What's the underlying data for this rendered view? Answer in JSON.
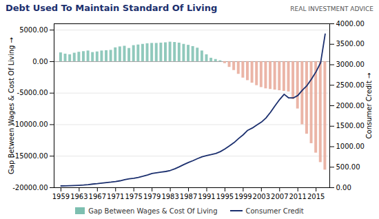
{
  "chart_data": {
    "type": "bar",
    "title": "Debt Used To Maintain Standard Of Living",
    "annotation": "REAL INVESTMENT ADVICE",
    "ylabel": "Gap Between Wages & Cost Of Living",
    "y2label": "Consumer Credit",
    "x": [
      1959,
      1960,
      1961,
      1962,
      1963,
      1964,
      1965,
      1966,
      1967,
      1968,
      1969,
      1970,
      1971,
      1972,
      1973,
      1974,
      1975,
      1976,
      1977,
      1978,
      1979,
      1980,
      1981,
      1982,
      1983,
      1984,
      1985,
      1986,
      1987,
      1988,
      1989,
      1990,
      1991,
      1992,
      1993,
      1994,
      1995,
      1996,
      1997,
      1998,
      1999,
      2000,
      2001,
      2002,
      2003,
      2004,
      2005,
      2006,
      2007,
      2008,
      2009,
      2010,
      2011,
      2012,
      2013,
      2014,
      2015,
      2016,
      2017
    ],
    "series": [
      {
        "name": "Gap Between Wages & Cost Of Living",
        "type": "bar",
        "colors": [
          "#7dbfb0",
          "#7dbfb0",
          "#7dbfb0",
          "#7dbfb0",
          "#7dbfb0",
          "#7dbfb0",
          "#7dbfb0",
          "#7dbfb0",
          "#7dbfb0",
          "#7dbfb0",
          "#7dbfb0",
          "#7dbfb0",
          "#7dbfb0",
          "#7dbfb0",
          "#7dbfb0",
          "#7dbfb0",
          "#7dbfb0",
          "#7dbfb0",
          "#7dbfb0",
          "#7dbfb0",
          "#7dbfb0",
          "#7dbfb0",
          "#7dbfb0",
          "#7dbfb0",
          "#7dbfb0",
          "#7dbfb0",
          "#7dbfb0",
          "#7dbfb0",
          "#7dbfb0",
          "#7dbfb0",
          "#7dbfb0",
          "#7dbfb0",
          "#7dbfb0",
          "#7dbfb0",
          "#7dbfb0",
          "#7dbfb0",
          "#e8a898",
          "#e8a898",
          "#e8a898",
          "#e8a898",
          "#e8a898",
          "#e8a898",
          "#e8a898",
          "#e8a898",
          "#e8a898",
          "#e8a898",
          "#e8a898",
          "#e8a898",
          "#e8a898",
          "#e8a898",
          "#e8a898",
          "#e8a898",
          "#e8a898",
          "#e8a898",
          "#e8a898",
          "#e8a898",
          "#e8a898",
          "#e8a898",
          "#e8a898"
        ],
        "values": [
          1400,
          1200,
          1100,
          1350,
          1500,
          1600,
          1700,
          1450,
          1550,
          1700,
          1750,
          1800,
          2200,
          2350,
          2450,
          2100,
          2550,
          2650,
          2750,
          2850,
          2900,
          2900,
          2950,
          3000,
          3100,
          3050,
          2950,
          2750,
          2600,
          2400,
          2150,
          1700,
          1100,
          550,
          350,
          150,
          -300,
          -900,
          -1400,
          -2000,
          -2600,
          -3000,
          -3400,
          -3800,
          -4100,
          -4300,
          -4400,
          -4500,
          -4600,
          -4700,
          -4800,
          -6000,
          -7500,
          -10000,
          -11500,
          -13000,
          -14500,
          -16000,
          -17200
        ]
      },
      {
        "name": "Consumer Credit",
        "type": "line",
        "axis": "y2",
        "color": "#1b2f6e",
        "values": [
          42,
          44,
          47,
          52,
          58,
          65,
          75,
          88,
          98,
          112,
          125,
          135,
          150,
          168,
          195,
          215,
          228,
          250,
          278,
          310,
          345,
          365,
          380,
          395,
          420,
          460,
          510,
          565,
          615,
          660,
          710,
          755,
          785,
          808,
          835,
          880,
          945,
          1020,
          1100,
          1200,
          1290,
          1400,
          1455,
          1530,
          1600,
          1700,
          1840,
          2000,
          2150,
          2280,
          2190,
          2190,
          2250,
          2380,
          2490,
          2650,
          2830,
          3050,
          3750
        ]
      }
    ],
    "xlim": [
      1957.5,
      2018
    ],
    "xticks": [
      1959,
      1963,
      1967,
      1971,
      1975,
      1979,
      1983,
      1987,
      1991,
      1995,
      1999,
      2003,
      2007,
      2011,
      2015
    ],
    "ylim": [
      -20000,
      6000
    ],
    "yticks": [
      {
        "value": -20000,
        "label": "-20000.00"
      },
      {
        "value": -15000,
        "label": "-15000.00"
      },
      {
        "value": -10000,
        "label": "-10000.00"
      },
      {
        "value": -5000,
        "label": "-5000.00"
      },
      {
        "value": 0,
        "label": "0.00"
      },
      {
        "value": 5000,
        "label": "5000.00"
      }
    ],
    "y2lim": [
      0,
      4000
    ],
    "y2ticks": [
      {
        "value": 0,
        "label": "0.00"
      },
      {
        "value": 500,
        "label": "500.00"
      },
      {
        "value": 1000,
        "label": "1000.00"
      },
      {
        "value": 1500,
        "label": "1500.00"
      },
      {
        "value": 2000,
        "label": "2000.00"
      },
      {
        "value": 2500,
        "label": "2500.00"
      },
      {
        "value": 3000,
        "label": "3000.00"
      },
      {
        "value": 3500,
        "label": "3500.00"
      },
      {
        "value": 4000,
        "label": "4000.00"
      }
    ],
    "grid": true,
    "legend": "bottom"
  }
}
